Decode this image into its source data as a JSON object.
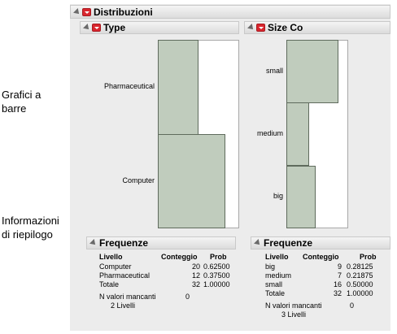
{
  "annotations": {
    "charts_label_1": "Grafici a",
    "charts_label_2": "barre",
    "summary_label_1": "Informazioni",
    "summary_label_2": "di riepilogo"
  },
  "report": {
    "title": "Distribuzioni",
    "panels": [
      {
        "title": "Type",
        "freq_title": "Frequenze",
        "columns": [
          "Livello",
          "Conteggio",
          "Prob"
        ],
        "rows": [
          {
            "level": "Computer",
            "count": "20",
            "prob": "0.62500"
          },
          {
            "level": "Pharmaceutical",
            "count": "12",
            "prob": "0.37500"
          },
          {
            "level": "Totale",
            "count": "32",
            "prob": "1.00000"
          }
        ],
        "missing_label": "N valori mancanti",
        "missing_value": "0",
        "levels_text": "2  Livelli"
      },
      {
        "title": "Size Co",
        "freq_title": "Frequenze",
        "columns": [
          "Livello",
          "Conteggio",
          "Prob"
        ],
        "rows": [
          {
            "level": "big",
            "count": "9",
            "prob": "0.28125"
          },
          {
            "level": "medium",
            "count": "7",
            "prob": "0.21875"
          },
          {
            "level": "small",
            "count": "16",
            "prob": "0.50000"
          },
          {
            "level": "Totale",
            "count": "32",
            "prob": "1.00000"
          }
        ],
        "missing_label": "N valori mancanti",
        "missing_value": "0",
        "levels_text": "3  Livelli"
      }
    ]
  },
  "chart_data": [
    {
      "type": "bar",
      "orientation": "horizontal",
      "categories": [
        "Pharmaceutical",
        "Computer"
      ],
      "values": [
        12,
        20
      ],
      "xlim": [
        0,
        24
      ],
      "grid": false
    },
    {
      "type": "bar",
      "orientation": "horizontal",
      "categories": [
        "small",
        "medium",
        "big"
      ],
      "values": [
        16,
        7,
        9
      ],
      "xlim": [
        0,
        19
      ],
      "grid": false
    }
  ]
}
